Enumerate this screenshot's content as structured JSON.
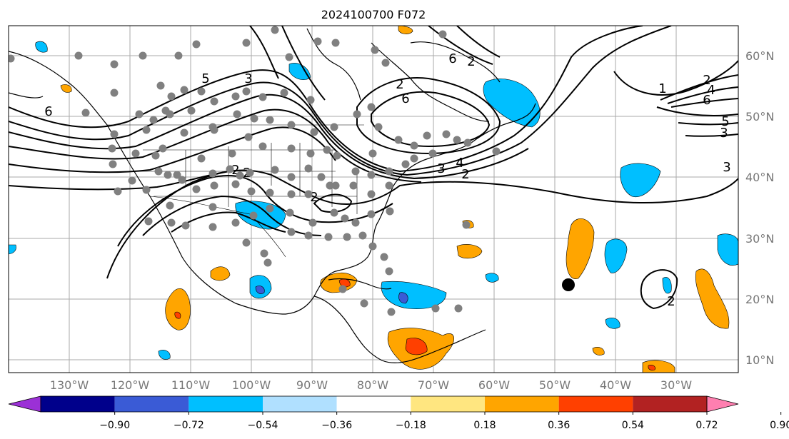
{
  "title": "2024100700 F072",
  "lon_labels": [
    "130°W",
    "120°W",
    "110°W",
    "100°W",
    "90°W",
    "80°W",
    "70°W",
    "60°W",
    "50°W",
    "40°W",
    "30°W"
  ],
  "lat_labels": [
    "60°N",
    "50°N",
    "40°N",
    "30°N",
    "20°N",
    "10°N"
  ],
  "colorbar": {
    "colors": [
      "#9b30d6",
      "#00008b",
      "#3a5bd6",
      "#00bfff",
      "#b0e0ff",
      "#ffffff",
      "#ffe680",
      "#ffa500",
      "#ff4000",
      "#b22222",
      "#ff7fb0"
    ],
    "labels": [
      "−0.90",
      "−0.72",
      "−0.54",
      "−0.36",
      "−0.18",
      "0.18",
      "0.36",
      "0.54",
      "0.72",
      "0.90"
    ]
  },
  "contour_labels": [
    "6",
    "5",
    "3",
    "6",
    "2",
    "6",
    "2",
    "1",
    "2",
    "4",
    "6",
    "5",
    "3",
    "3",
    "2",
    "3",
    "4",
    "2",
    "2",
    "2",
    "2"
  ],
  "marker": {
    "label": "storm-position"
  }
}
